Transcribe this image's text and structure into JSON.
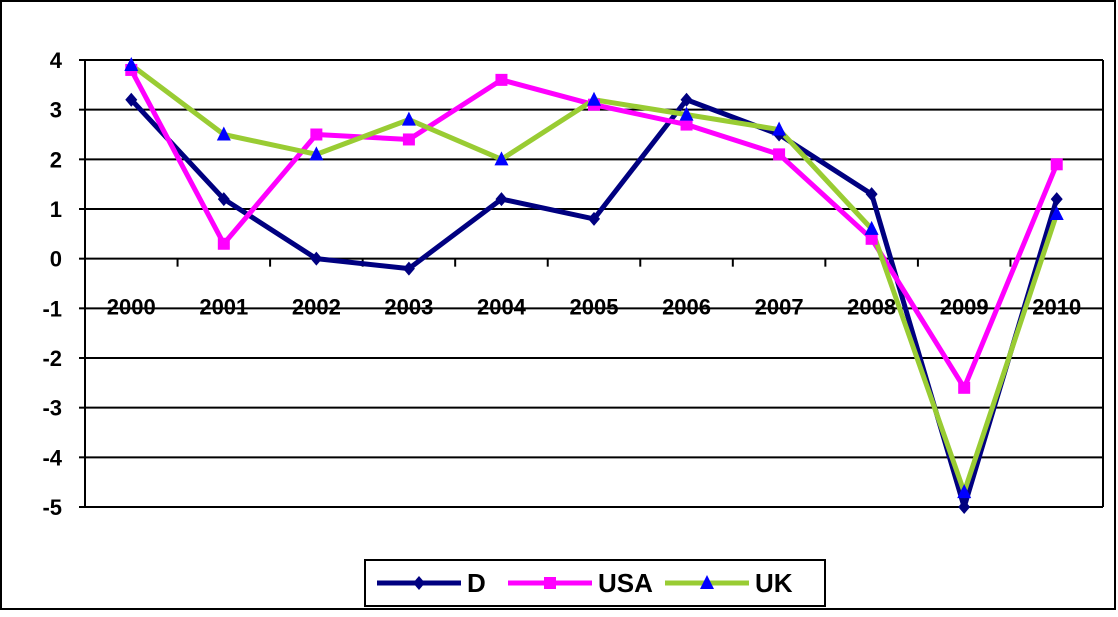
{
  "chart_data": {
    "type": "line",
    "title": "",
    "xlabel": "",
    "ylabel": "",
    "categories": [
      "2000",
      "2001",
      "2002",
      "2003",
      "2004",
      "2005",
      "2006",
      "2007",
      "2008",
      "2009",
      "2010"
    ],
    "ylim": [
      -5,
      4
    ],
    "yticks": [
      4,
      3,
      2,
      1,
      0,
      -1,
      -2,
      -3,
      -4,
      -5
    ],
    "grid": "horizontal",
    "legend_position": "bottom",
    "series": [
      {
        "name": "D",
        "color": "#000080",
        "marker": "diamond",
        "values": [
          3.2,
          1.2,
          0.0,
          -0.2,
          1.2,
          0.8,
          3.2,
          2.5,
          1.3,
          -5.0,
          1.2
        ]
      },
      {
        "name": "USA",
        "color": "#FF00FF",
        "marker": "square",
        "values": [
          3.8,
          0.3,
          2.5,
          2.4,
          3.6,
          3.1,
          2.7,
          2.1,
          0.4,
          -2.6,
          1.9
        ]
      },
      {
        "name": "UK",
        "color": "#99CC33",
        "marker": "triangle",
        "marker_color": "#0000FF",
        "values": [
          3.9,
          2.5,
          2.1,
          2.8,
          2.0,
          3.2,
          2.9,
          2.6,
          0.6,
          -4.7,
          0.9
        ]
      }
    ]
  }
}
